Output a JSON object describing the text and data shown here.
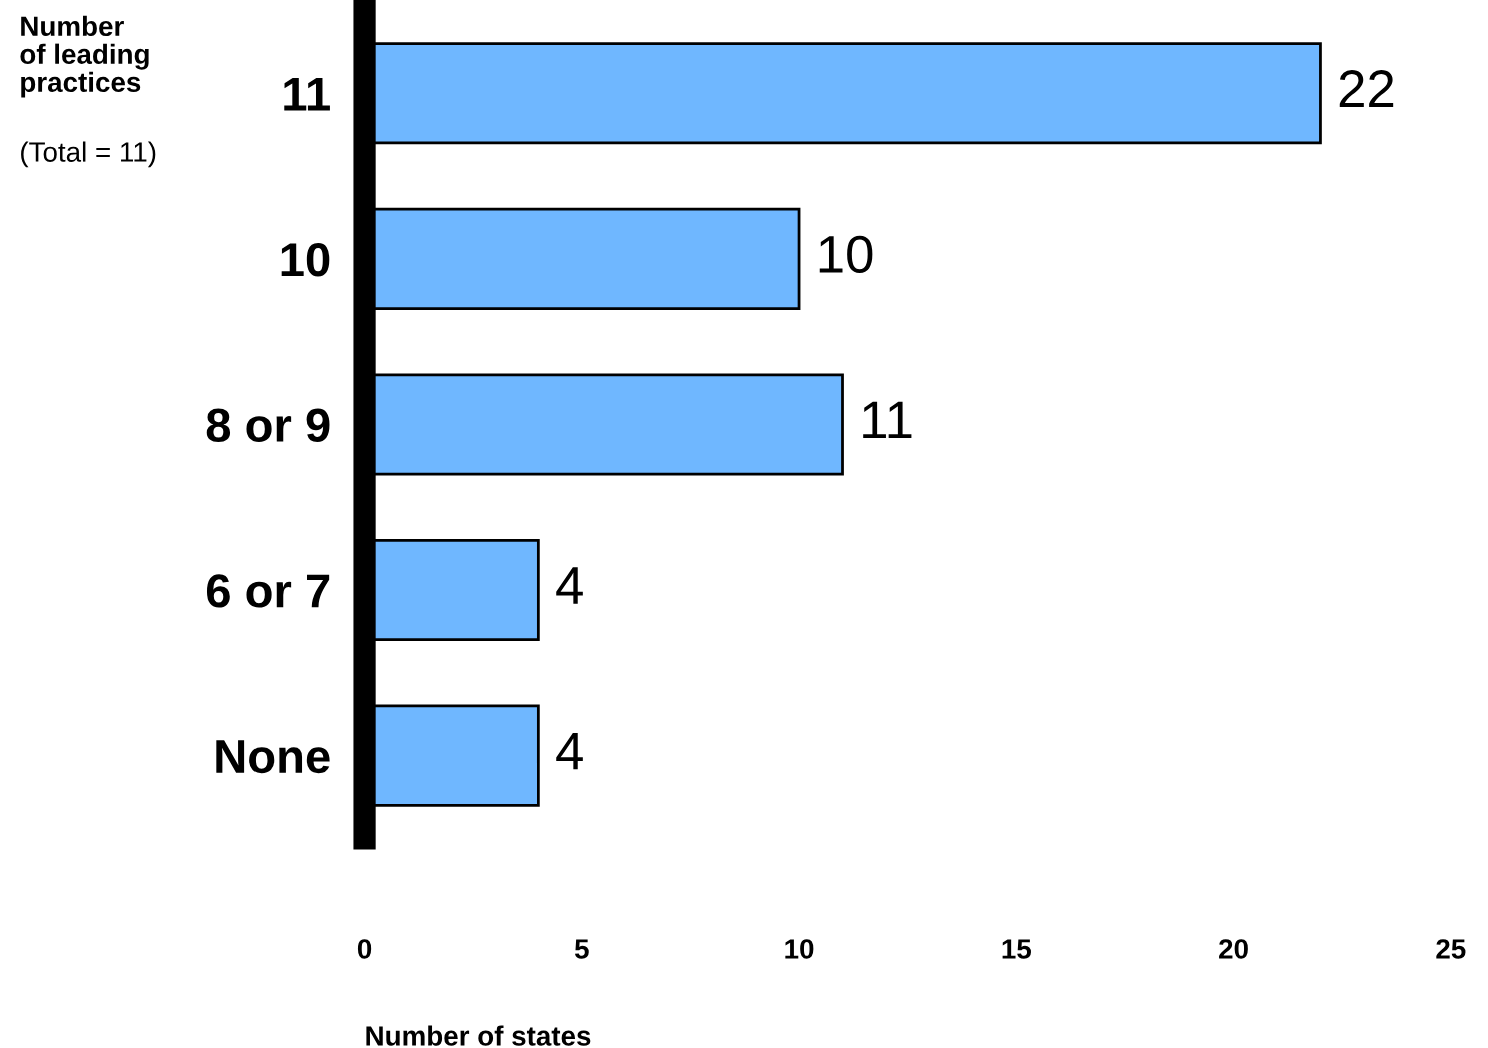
{
  "chart_data": {
    "type": "bar",
    "orientation": "horizontal",
    "categories": [
      "11",
      "10",
      "8 or 9",
      "6 or 7",
      "None"
    ],
    "values": [
      22,
      10,
      11,
      4,
      4
    ],
    "color": "#6fb7ff",
    "data_labels": true,
    "xlim": [
      0,
      25
    ],
    "xticks": [
      0,
      5,
      10,
      15,
      20,
      25
    ],
    "xlabel": "Number of states",
    "ylabel": "Number\nof leading\npractices",
    "annotations": [
      "(Total = 11)"
    ],
    "grid": false,
    "legend": false
  }
}
